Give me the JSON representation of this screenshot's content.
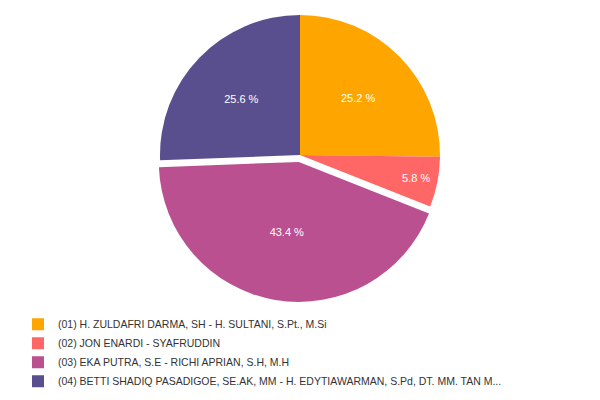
{
  "chart_data": {
    "type": "pie",
    "categories": [
      "(01) H. ZULDAFRI DARMA, SH - H. SULTANI, S.Pt., M.Si",
      "(02) JON ENARDI - SYAFRUDDIN",
      "(03) EKA PUTRA, S.E - RICHI APRIAN, S.H, M.H",
      "(04) BETTI SHADIQ PASADIGOE, SE.AK, MM - H. EDYTIAWARMAN, S.Pd, DT. MM. TAN M..."
    ],
    "values": [
      25.2,
      5.8,
      43.4,
      25.6
    ],
    "value_labels": [
      "25.2 %",
      "5.8 %",
      "43.4 %",
      "25.6 %"
    ],
    "colors": [
      "#ffa500",
      "#ff6666",
      "#bb5090",
      "#5a4f8e"
    ],
    "data_labels": true,
    "legend": "bottom"
  }
}
